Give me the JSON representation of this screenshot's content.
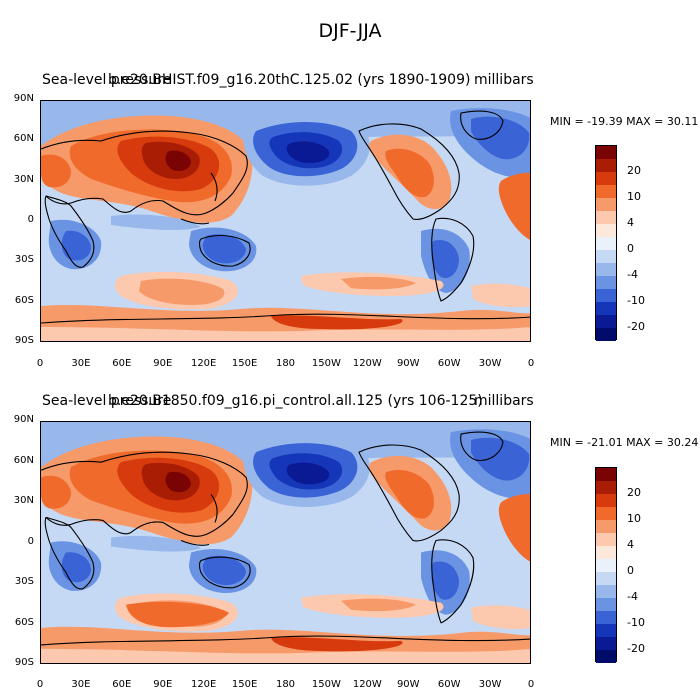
{
  "title": "DJF-JJA",
  "units": "millibars",
  "lat_ticks": [
    "90N",
    "60N",
    "30N",
    "0",
    "30S",
    "60S",
    "90S"
  ],
  "lon_ticks": [
    "0",
    "30E",
    "60E",
    "90E",
    "120E",
    "150E",
    "180",
    "150W",
    "120W",
    "90W",
    "60W",
    "30W",
    "0"
  ],
  "colorbar": {
    "labels": [
      "20",
      "10",
      "4",
      "0",
      "-4",
      "-10",
      "-20"
    ],
    "colors": [
      "#7a0403",
      "#a91d05",
      "#d63a0d",
      "#f06a2c",
      "#f79a6a",
      "#fcc8ae",
      "#fde8dc",
      "#eaf1fb",
      "#c6d9f4",
      "#98b8ec",
      "#6a93e3",
      "#3a63d6",
      "#1536b8",
      "#0a1a95",
      "#000b6a"
    ]
  },
  "panels": [
    {
      "left_label": "Sea-level pressure",
      "center_label": "b.e20.BHIST.f09_g16.20thC.125.02 (yrs 1890-1909)",
      "min_max": "MIN = -19.39 MAX =  30.11"
    },
    {
      "left_label": "Sea-level pressure",
      "center_label": "b.e20.B1850.f09_g16.pi_control.all.125 (yrs 106-125)",
      "min_max": "MIN = -21.01 MAX =  30.24"
    }
  ],
  "chart_data": {
    "type": "heatmap",
    "title": "DJF-JJA",
    "variable": "Sea-level pressure",
    "units": "millibars",
    "x_axis": {
      "ticks": [
        "0",
        "30E",
        "60E",
        "90E",
        "120E",
        "150E",
        "180",
        "150W",
        "120W",
        "90W",
        "60W",
        "30W",
        "0"
      ],
      "range": [
        0,
        360
      ]
    },
    "y_axis": {
      "ticks": [
        "90N",
        "60N",
        "30N",
        "0",
        "30S",
        "60S",
        "90S"
      ],
      "range": [
        90,
        -90
      ]
    },
    "color_levels": [
      -20,
      -15,
      -10,
      -6,
      -4,
      -2,
      -1,
      0,
      1,
      2,
      4,
      6,
      10,
      15,
      20
    ],
    "panels": [
      {
        "case": "b.e20.BHIST.f09_g16.20thC.125.02 (yrs 1890-1909)",
        "min": -19.39,
        "max": 30.11
      },
      {
        "case": "b.e20.B1850.f09_g16.pi_control.all.125 (yrs 106-125)",
        "min": -21.01,
        "max": 30.24
      }
    ]
  }
}
